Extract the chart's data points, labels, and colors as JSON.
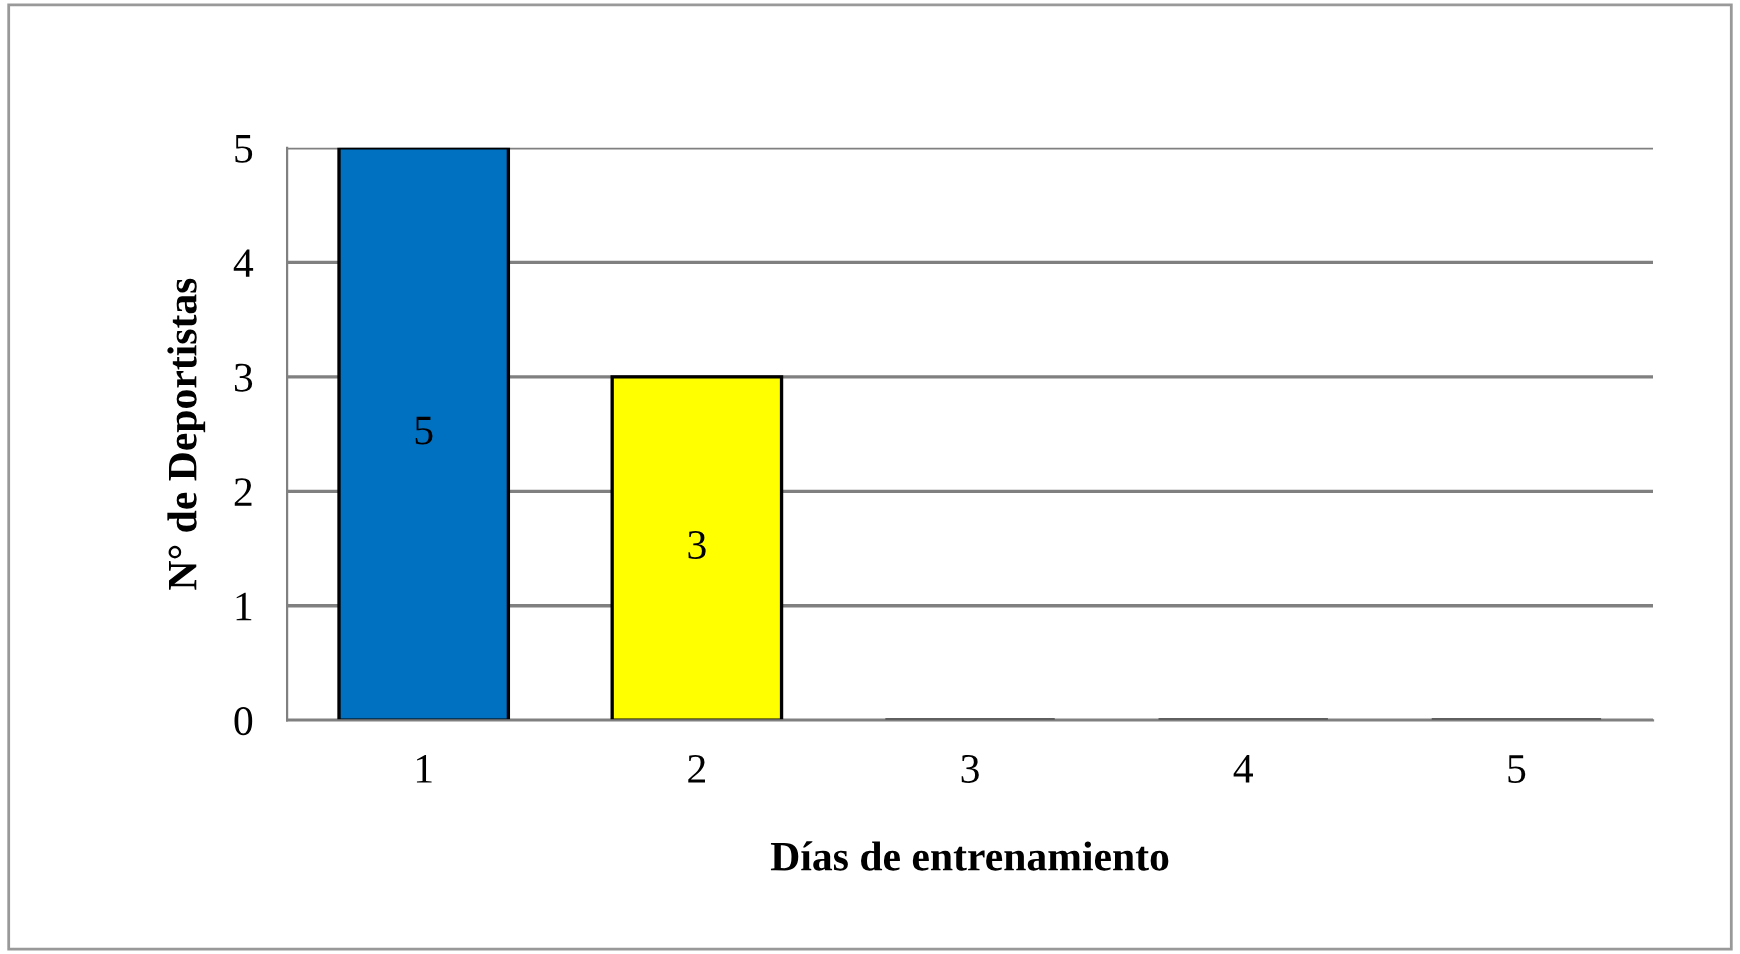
{
  "chart_data": {
    "type": "bar",
    "xlabel": "Días de entrenamiento",
    "ylabel": "N° de Deportistas",
    "categories": [
      "1",
      "2",
      "3",
      "4",
      "5"
    ],
    "values": [
      5,
      3,
      0,
      0,
      0
    ],
    "colors": [
      "#0070c0",
      "#ffff00",
      "#a5706a",
      "#00853e",
      "#5a2d82"
    ],
    "value_labels": [
      "5",
      "3",
      null,
      null,
      null
    ],
    "ylim": [
      0,
      5
    ],
    "yticks": [
      0,
      1,
      2,
      3,
      4,
      5
    ],
    "grid": "y",
    "legend": false
  }
}
